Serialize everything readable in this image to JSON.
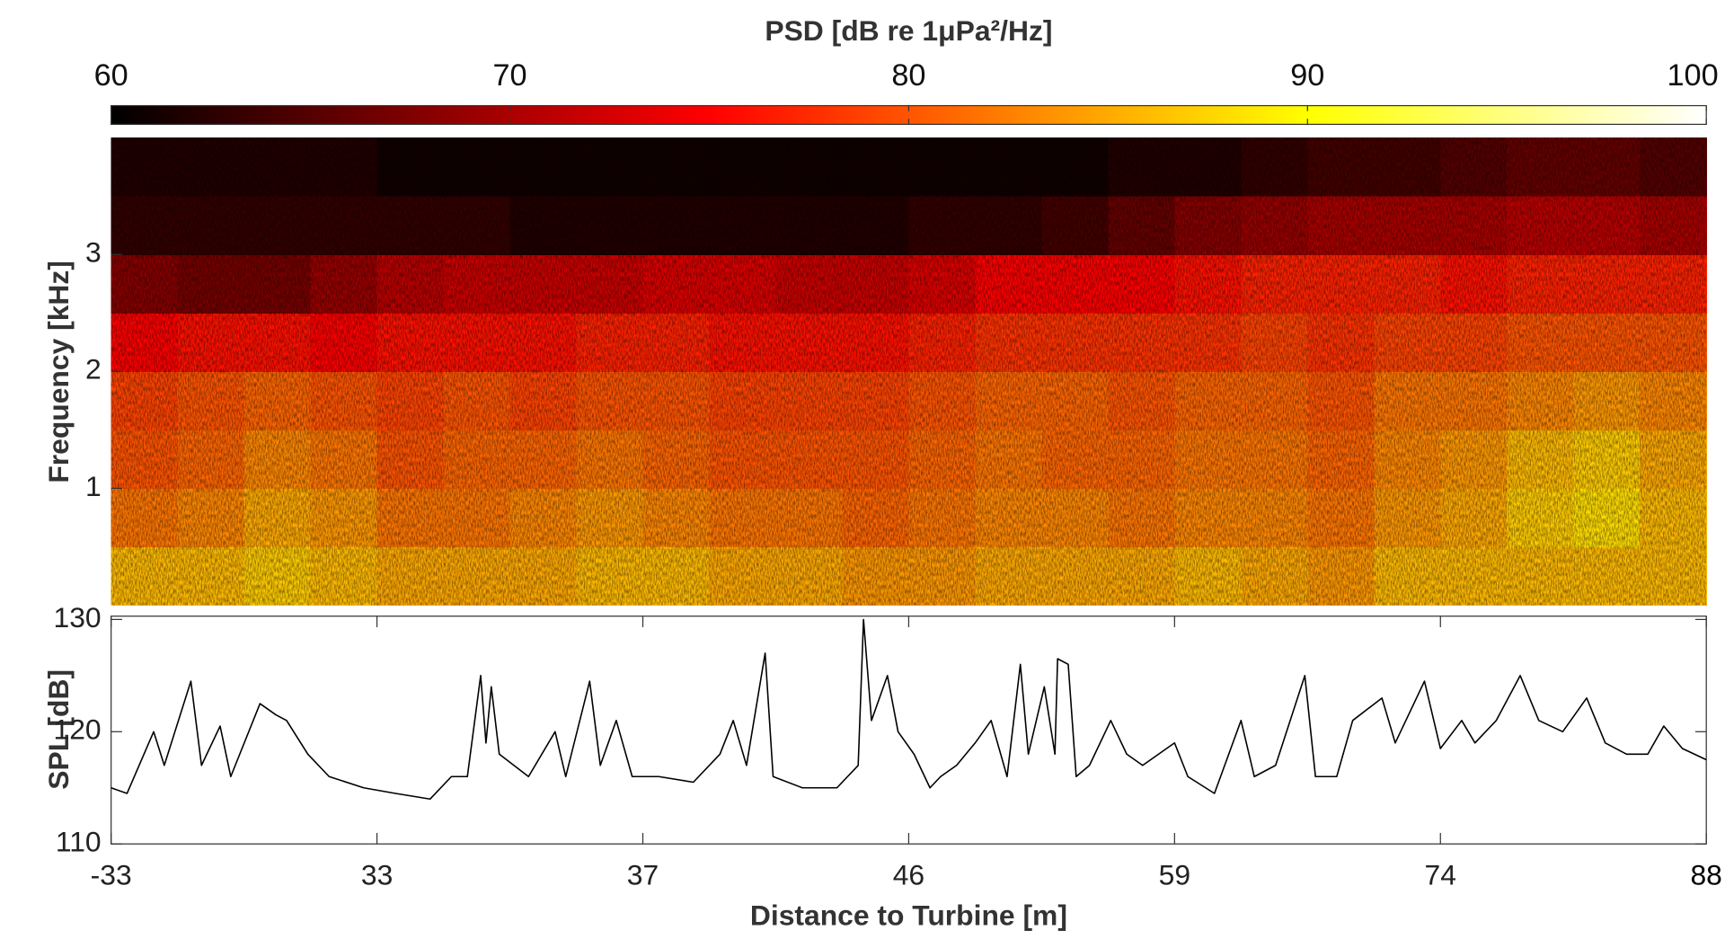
{
  "chart_data": [
    {
      "type": "colorbar",
      "title": "PSD [dB re 1μPa²/Hz]",
      "colormap": "hot",
      "lim": [
        60,
        100
      ],
      "ticks": [
        60,
        70,
        80,
        90,
        100
      ]
    },
    {
      "type": "heatmap",
      "ylabel": "Frequency [kHz]",
      "xlim": [
        0,
        6
      ],
      "ylim": [
        0,
        4
      ],
      "yticks": [
        1,
        2,
        3
      ],
      "xbins": [
        0,
        0.25,
        0.5,
        0.75,
        1,
        1.25,
        1.5,
        1.75,
        2,
        2.25,
        2.5,
        2.75,
        3,
        3.25,
        3.5,
        3.75,
        4,
        4.25,
        4.5,
        4.75,
        5,
        5.25,
        5.5,
        5.75,
        6
      ],
      "ybins": [
        0,
        0.5,
        1,
        1.5,
        2,
        2.5,
        3,
        3.5,
        4
      ],
      "z": [
        [
          86,
          86,
          87,
          86,
          85,
          85,
          85,
          86,
          86,
          85,
          85,
          84,
          84,
          85,
          85,
          85,
          86,
          85,
          84,
          86,
          86,
          86,
          86,
          86
        ],
        [
          82,
          83,
          85,
          84,
          82,
          82,
          83,
          84,
          83,
          82,
          82,
          81,
          82,
          83,
          83,
          82,
          83,
          83,
          82,
          84,
          85,
          87,
          88,
          86
        ],
        [
          80,
          81,
          83,
          82,
          80,
          81,
          81,
          82,
          81,
          80,
          80,
          80,
          81,
          82,
          81,
          81,
          82,
          82,
          81,
          83,
          84,
          86,
          87,
          85
        ],
        [
          79,
          80,
          81,
          80,
          79,
          80,
          79,
          80,
          80,
          79,
          79,
          79,
          80,
          81,
          81,
          80,
          81,
          81,
          80,
          82,
          82,
          83,
          84,
          83
        ],
        [
          75,
          76,
          76,
          75,
          76,
          76,
          76,
          77,
          77,
          76,
          76,
          76,
          77,
          78,
          78,
          78,
          78,
          79,
          78,
          79,
          79,
          80,
          80,
          80
        ],
        [
          68,
          67,
          67,
          69,
          71,
          72,
          72,
          72,
          73,
          73,
          72,
          72,
          73,
          75,
          75,
          75,
          76,
          77,
          77,
          77,
          76,
          77,
          77,
          77
        ],
        [
          63,
          63,
          63,
          63,
          63,
          63,
          62,
          62,
          62,
          62,
          62,
          62,
          63,
          63,
          64,
          66,
          68,
          69,
          70,
          70,
          70,
          71,
          71,
          70
        ],
        [
          62,
          62,
          62,
          62,
          61,
          61,
          61,
          61,
          61,
          61,
          61,
          61,
          61,
          61,
          61,
          62,
          62,
          63,
          64,
          64,
          65,
          66,
          66,
          65
        ]
      ]
    },
    {
      "type": "line",
      "ylabel": "SPL [dB]",
      "xlabel": "Distance to Turbine [m]",
      "color": "#000000",
      "xlim": [
        0,
        6
      ],
      "ylim": [
        110,
        130
      ],
      "yticks": [
        110,
        120,
        130
      ],
      "xticks": [
        {
          "value": 0,
          "label": "-33"
        },
        {
          "value": 1,
          "label": "33"
        },
        {
          "value": 2,
          "label": "37"
        },
        {
          "value": 3,
          "label": "46"
        },
        {
          "value": 4,
          "label": "59"
        },
        {
          "value": 5,
          "label": "74"
        },
        {
          "value": 6,
          "label": "88"
        }
      ],
      "x": [
        0,
        0.06,
        0.16,
        0.2,
        0.3,
        0.34,
        0.41,
        0.45,
        0.56,
        0.62,
        0.66,
        0.74,
        0.82,
        0.95,
        1.07,
        1.2,
        1.28,
        1.34,
        1.39,
        1.41,
        1.43,
        1.46,
        1.57,
        1.67,
        1.71,
        1.8,
        1.84,
        1.9,
        1.96,
        2.06,
        2.19,
        2.29,
        2.34,
        2.39,
        2.46,
        2.49,
        2.6,
        2.73,
        2.81,
        2.83,
        2.86,
        2.92,
        2.96,
        3.02,
        3.08,
        3.12,
        3.18,
        3.25,
        3.31,
        3.37,
        3.42,
        3.45,
        3.51,
        3.55,
        3.56,
        3.6,
        3.63,
        3.68,
        3.76,
        3.82,
        3.88,
        4,
        4.05,
        4.15,
        4.25,
        4.3,
        4.38,
        4.49,
        4.53,
        4.61,
        4.67,
        4.78,
        4.83,
        4.94,
        5,
        5.08,
        5.13,
        5.21,
        5.3,
        5.37,
        5.46,
        5.55,
        5.62,
        5.7,
        5.78,
        5.84,
        5.91,
        6
      ],
      "values": [
        115,
        114.5,
        120,
        117,
        124.5,
        117,
        120.5,
        116,
        122.5,
        121.5,
        121,
        118,
        116,
        115,
        114.5,
        114,
        116,
        116,
        125,
        119,
        124,
        118,
        116,
        120,
        116,
        124.5,
        117,
        121,
        116,
        116,
        115.5,
        118,
        121,
        117,
        127,
        116,
        115,
        115,
        117,
        130,
        121,
        125,
        120,
        118,
        115,
        116,
        117,
        119,
        121,
        116,
        126,
        118,
        124,
        118,
        126.5,
        126,
        116,
        117,
        121,
        118,
        117,
        119,
        116,
        114.5,
        121,
        116,
        117,
        125,
        116,
        116,
        121,
        123,
        119,
        124.5,
        118.5,
        121,
        119,
        121,
        125,
        121,
        120,
        123,
        119,
        118,
        118,
        120.5,
        118.5,
        117.5
      ]
    }
  ]
}
